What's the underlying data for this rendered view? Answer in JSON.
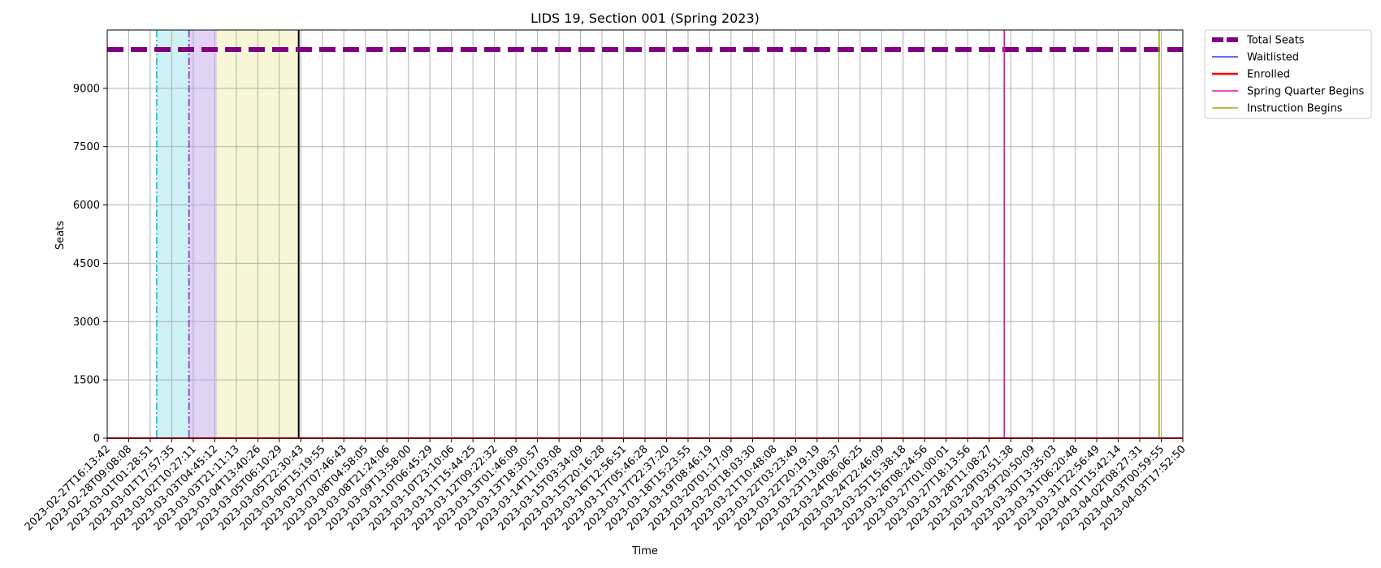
{
  "chart_data": {
    "type": "line",
    "title": "LIDS 19, Section 001 (Spring 2023)",
    "xlabel": "Time",
    "ylabel": "Seats",
    "x_ticks": [
      "2023-02-27T16:13:42",
      "2023-02-28T09:08:08",
      "2023-03-01T01:28:51",
      "2023-03-01T17:57:35",
      "2023-03-02T10:27:11",
      "2023-03-03T04:45:12",
      "2023-03-03T21:11:13",
      "2023-03-04T13:40:26",
      "2023-03-05T06:10:29",
      "2023-03-05T22:30:43",
      "2023-03-06T15:19:55",
      "2023-03-07T07:46:43",
      "2023-03-08T04:58:05",
      "2023-03-08T21:24:06",
      "2023-03-09T13:58:00",
      "2023-03-10T06:45:29",
      "2023-03-10T23:10:06",
      "2023-03-11T15:44:25",
      "2023-03-12T09:22:32",
      "2023-03-13T01:46:09",
      "2023-03-13T18:30:57",
      "2023-03-14T11:03:08",
      "2023-03-15T03:34:09",
      "2023-03-15T20:16:28",
      "2023-03-16T12:56:51",
      "2023-03-17T05:46:28",
      "2023-03-17T22:37:20",
      "2023-03-18T15:23:55",
      "2023-03-19T08:46:19",
      "2023-03-20T01:17:09",
      "2023-03-20T18:03:30",
      "2023-03-21T10:48:08",
      "2023-03-22T03:23:49",
      "2023-03-22T20:19:19",
      "2023-03-23T13:08:37",
      "2023-03-24T06:06:25",
      "2023-03-24T22:46:09",
      "2023-03-25T15:38:18",
      "2023-03-26T08:24:56",
      "2023-03-27T01:00:01",
      "2023-03-27T18:13:56",
      "2023-03-28T11:08:27",
      "2023-03-29T03:51:38",
      "2023-03-29T20:50:09",
      "2023-03-30T13:35:03",
      "2023-03-31T06:20:48",
      "2023-03-31T22:56:49",
      "2023-04-01T15:42:14",
      "2023-04-02T08:27:31",
      "2023-04-03T00:59:55",
      "2023-04-03T17:52:50"
    ],
    "y_ticks": [
      0,
      1500,
      3000,
      4500,
      6000,
      7500,
      9000
    ],
    "ylim": [
      0,
      10500
    ],
    "grid": true,
    "legend_position": "outside-top-right",
    "series": [
      {
        "name": "Total Seats",
        "color": "#800080",
        "style": "dashed-thick",
        "value": 10000
      },
      {
        "name": "Waitlisted",
        "color": "#3333ff",
        "style": "solid",
        "value": 0
      },
      {
        "name": "Enrolled",
        "color": "#ff0000",
        "style": "solid",
        "value": 0
      }
    ],
    "event_lines": [
      {
        "name": "Spring Quarter Begins",
        "color": "#e6149b",
        "x_tick_position": 41.7
      },
      {
        "name": "Instruction Begins",
        "color": "#8fb015",
        "x_tick_position": 48.9
      }
    ],
    "unlabeled_markers": [
      {
        "color": "#17becf",
        "style": "dashdot",
        "x_tick_position": 2.3
      },
      {
        "color": "#7b2fd0",
        "style": "dashdot",
        "x_tick_position": 3.8
      },
      {
        "color": "#000000",
        "style": "solid",
        "x_tick_position": 8.9
      }
    ],
    "shaded_regions": [
      {
        "color": "#cdf1f5",
        "from_tick": 2.3,
        "to_tick": 3.8
      },
      {
        "color": "#e2d2f6",
        "from_tick": 3.8,
        "to_tick": 5.1
      },
      {
        "color": "#f7f7d7",
        "from_tick": 5.1,
        "to_tick": 8.9
      }
    ]
  }
}
